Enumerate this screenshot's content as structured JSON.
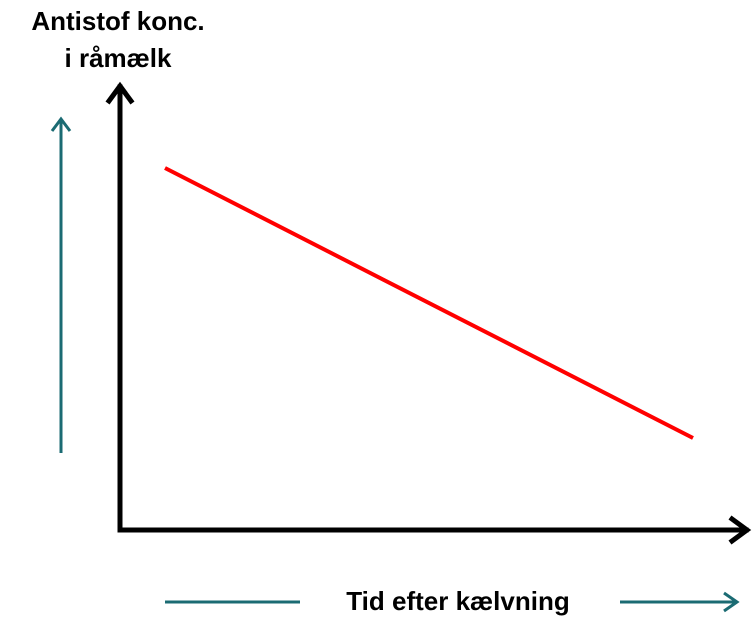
{
  "y_axis_label": [
    "Antistof konc.",
    "i råmælk"
  ],
  "x_axis_label": "Tid efter kælvning"
}
